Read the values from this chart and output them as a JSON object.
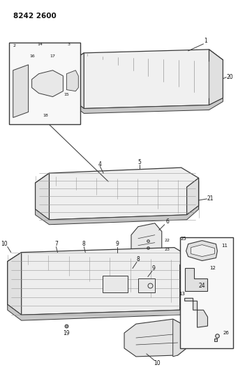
{
  "title": "8242 2600",
  "bg_color": "#ffffff",
  "lc": "#3a3a3a",
  "lc_light": "#999999",
  "fc_light": "#f2f2f2",
  "fc_mid": "#e0e0e0",
  "fc_dark": "#c8c8c8",
  "fig_width": 3.41,
  "fig_height": 5.33,
  "dpi": 100
}
